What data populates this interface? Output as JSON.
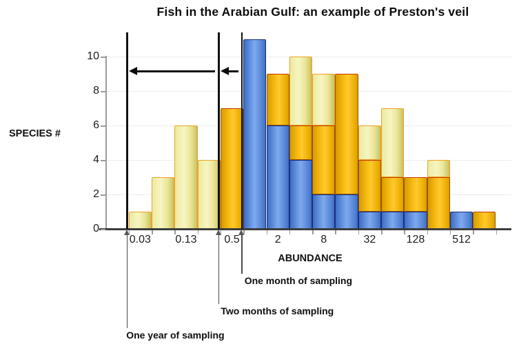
{
  "title": "Fish in the Arabian Gulf: an example of Preston's veil",
  "chart_data": {
    "type": "bar",
    "subtype": "stacked-histogram-preston-octaves",
    "title": "Fish in the Arabian Gulf: an example of Preston's veil",
    "xlabel": "ABUNDANCE",
    "ylabel": "SPECIES #",
    "ylim": [
      0,
      11
    ],
    "grid": "faint-horizontal",
    "legend_position": "none",
    "y_ticks": [
      0,
      2,
      4,
      6,
      8,
      10
    ],
    "x_tick_labels": [
      "0.03",
      "0.13",
      "0.5",
      "2",
      "8",
      "32",
      "128",
      "512"
    ],
    "octaves": [
      "0.03",
      "0.06",
      "0.13",
      "0.25",
      "0.5",
      "1",
      "2",
      "4",
      "8",
      "16",
      "32",
      "64",
      "128",
      "256",
      "512",
      "1024"
    ],
    "series": [
      {
        "name": "One month of sampling",
        "color": "#5b8bdd",
        "stack_order": 0,
        "values": [
          0,
          0,
          0,
          0,
          0,
          11,
          6,
          4,
          2,
          2,
          1,
          1,
          1,
          0,
          1,
          0
        ]
      },
      {
        "name": "Two months of sampling",
        "color": "#f4b400",
        "stack_order": 1,
        "values": [
          0,
          0,
          0,
          0,
          7,
          0,
          3,
          2,
          4,
          7,
          3,
          2,
          2,
          3,
          0,
          1
        ]
      },
      {
        "name": "One year of sampling",
        "color": "#f0eda6",
        "stack_order": 2,
        "values": [
          1,
          3,
          6,
          4,
          0,
          0,
          0,
          4,
          3,
          0,
          2,
          4,
          0,
          1,
          0,
          0
        ]
      }
    ],
    "bar_totals": [
      1,
      3,
      6,
      4,
      7,
      11,
      9,
      10,
      9,
      9,
      6,
      7,
      3,
      4,
      1,
      1
    ]
  },
  "annotations": {
    "veil_lines": [
      {
        "octave_index": 0,
        "label": "One year of sampling"
      },
      {
        "octave_index": 4,
        "label": "Two months of sampling"
      },
      {
        "octave_index": 5,
        "label": "One month of sampling"
      }
    ],
    "arrows": [
      {
        "type": "horizontal-left",
        "from_octave": 4,
        "to_octave": 0,
        "y_value": 9.2
      },
      {
        "type": "horizontal-left",
        "from_octave": 5,
        "to_octave": 4,
        "y_value": 9.2
      }
    ]
  }
}
